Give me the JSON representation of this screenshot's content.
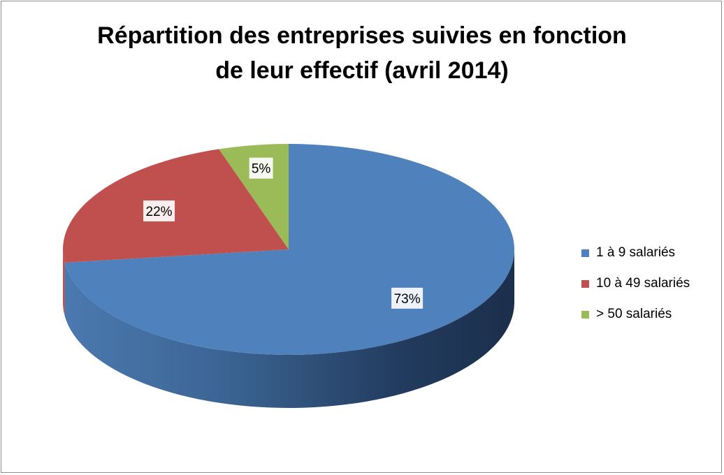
{
  "chart_data": {
    "type": "pie",
    "title": [
      "Répartition des entreprises suivies en fonction",
      "de leur effectif (avril 2014)"
    ],
    "categories": [
      "1 à 9 salariés",
      "10 à 49 salariés",
      "> 50 salariés"
    ],
    "values": [
      73,
      22,
      5
    ],
    "labels": [
      "73%",
      "22%",
      "5%"
    ],
    "colors": [
      "#4F81BD",
      "#C0504D",
      "#9BBB59"
    ],
    "style": "3d",
    "legend_position": "right"
  }
}
